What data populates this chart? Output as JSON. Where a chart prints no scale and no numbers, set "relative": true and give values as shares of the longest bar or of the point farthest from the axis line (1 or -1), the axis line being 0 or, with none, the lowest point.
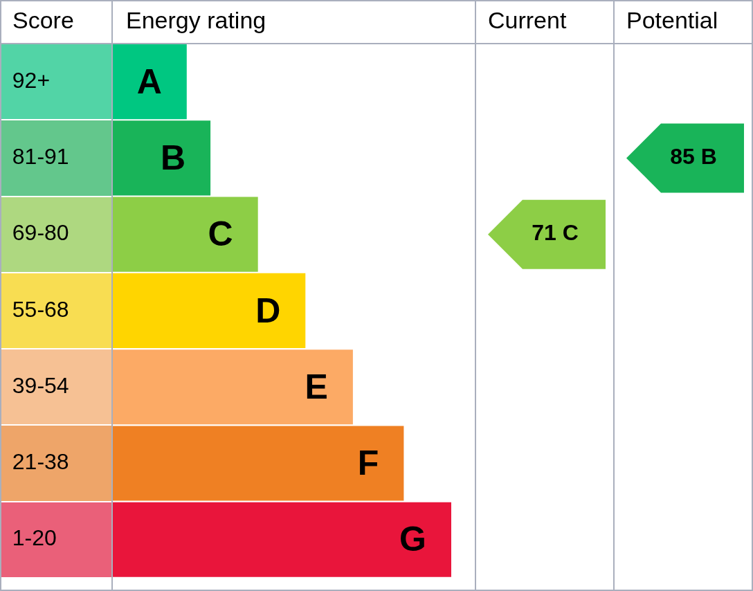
{
  "chart_data": {
    "type": "bar",
    "orientation": "horizontal",
    "relative": true,
    "ylabel": "Score",
    "xlabel": "Energy rating",
    "categories": [
      "92+",
      "81-91",
      "69-80",
      "55-68",
      "39-54",
      "21-38",
      "1-20"
    ],
    "values": [
      0.22,
      0.29,
      0.43,
      0.57,
      0.71,
      0.86,
      1
    ],
    "colors": [
      "#00c781",
      "#19b459",
      "#8dce46",
      "#ffd500",
      "#fcaa65",
      "#ef8023",
      "#e9153b"
    ],
    "annotations": [
      "Current",
      "Potential",
      {
        "text": "A",
        "x": 0.22,
        "y": "92+"
      },
      {
        "text": "B",
        "x": 0.29,
        "y": "81-91"
      },
      {
        "text": "C",
        "x": 0.43,
        "y": "69-80"
      },
      {
        "text": "D",
        "x": 0.57,
        "y": "55-68"
      },
      {
        "text": "E",
        "x": 0.71,
        "y": "39-54"
      },
      {
        "text": "F",
        "x": 0.86,
        "y": "21-38"
      },
      {
        "text": "G",
        "x": 1,
        "y": "1-20"
      },
      "71 C",
      "85 B"
    ]
  }
}
